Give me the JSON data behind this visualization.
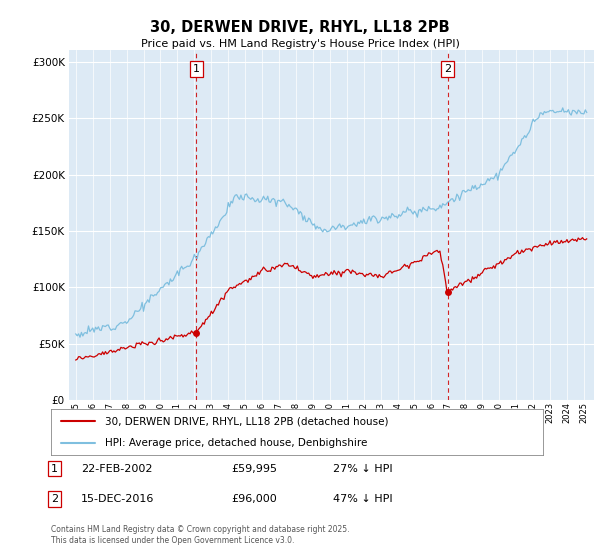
{
  "title": "30, DERWEN DRIVE, RHYL, LL18 2PB",
  "subtitle": "Price paid vs. HM Land Registry's House Price Index (HPI)",
  "ylim": [
    0,
    310000
  ],
  "yticks": [
    0,
    50000,
    100000,
    150000,
    200000,
    250000,
    300000
  ],
  "vline1_year": 2002.12,
  "vline2_year": 2016.96,
  "vline_color": "#cc0000",
  "hpi_color": "#7fbfdf",
  "price_color": "#cc0000",
  "t1_price": 59995,
  "t2_price": 96000,
  "legend_label1": "30, DERWEN DRIVE, RHYL, LL18 2PB (detached house)",
  "legend_label2": "HPI: Average price, detached house, Denbighshire",
  "footnote": "Contains HM Land Registry data © Crown copyright and database right 2025.\nThis data is licensed under the Open Government Licence v3.0.",
  "background_color": "#ffffff",
  "plot_bg_color": "#ddeaf5"
}
